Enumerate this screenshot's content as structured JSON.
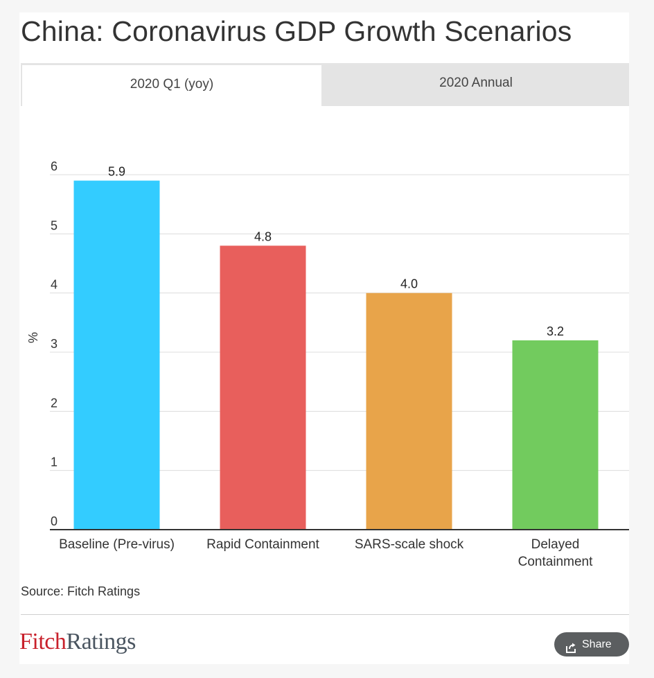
{
  "header": {
    "title": "China: Coronavirus GDP Growth Scenarios"
  },
  "tabs": [
    {
      "label": "2020 Q1 (yoy)",
      "active": true
    },
    {
      "label": "2020 Annual",
      "active": false
    }
  ],
  "chart_data": {
    "type": "bar",
    "categories": [
      [
        "Baseline (Pre-virus)"
      ],
      [
        "Rapid Containment"
      ],
      [
        "SARS-scale shock"
      ],
      [
        "Delayed",
        "Containment"
      ]
    ],
    "values": [
      5.9,
      4.8,
      4.0,
      3.2
    ],
    "value_labels": [
      "5.9",
      "4.8",
      "4.0",
      "3.2"
    ],
    "colors": [
      "#33ccff",
      "#e85f5c",
      "#e8a44a",
      "#72cb5e"
    ],
    "ylabel": "%",
    "ylim": [
      0,
      6
    ],
    "yticks": [
      0,
      1,
      2,
      3,
      4,
      5,
      6
    ],
    "grid": true
  },
  "footer": {
    "source": "Source: Fitch Ratings",
    "logo": {
      "part1": "Fitch",
      "part2": "Ratings"
    },
    "share_label": "Share",
    "share_icon": "share-icon"
  }
}
